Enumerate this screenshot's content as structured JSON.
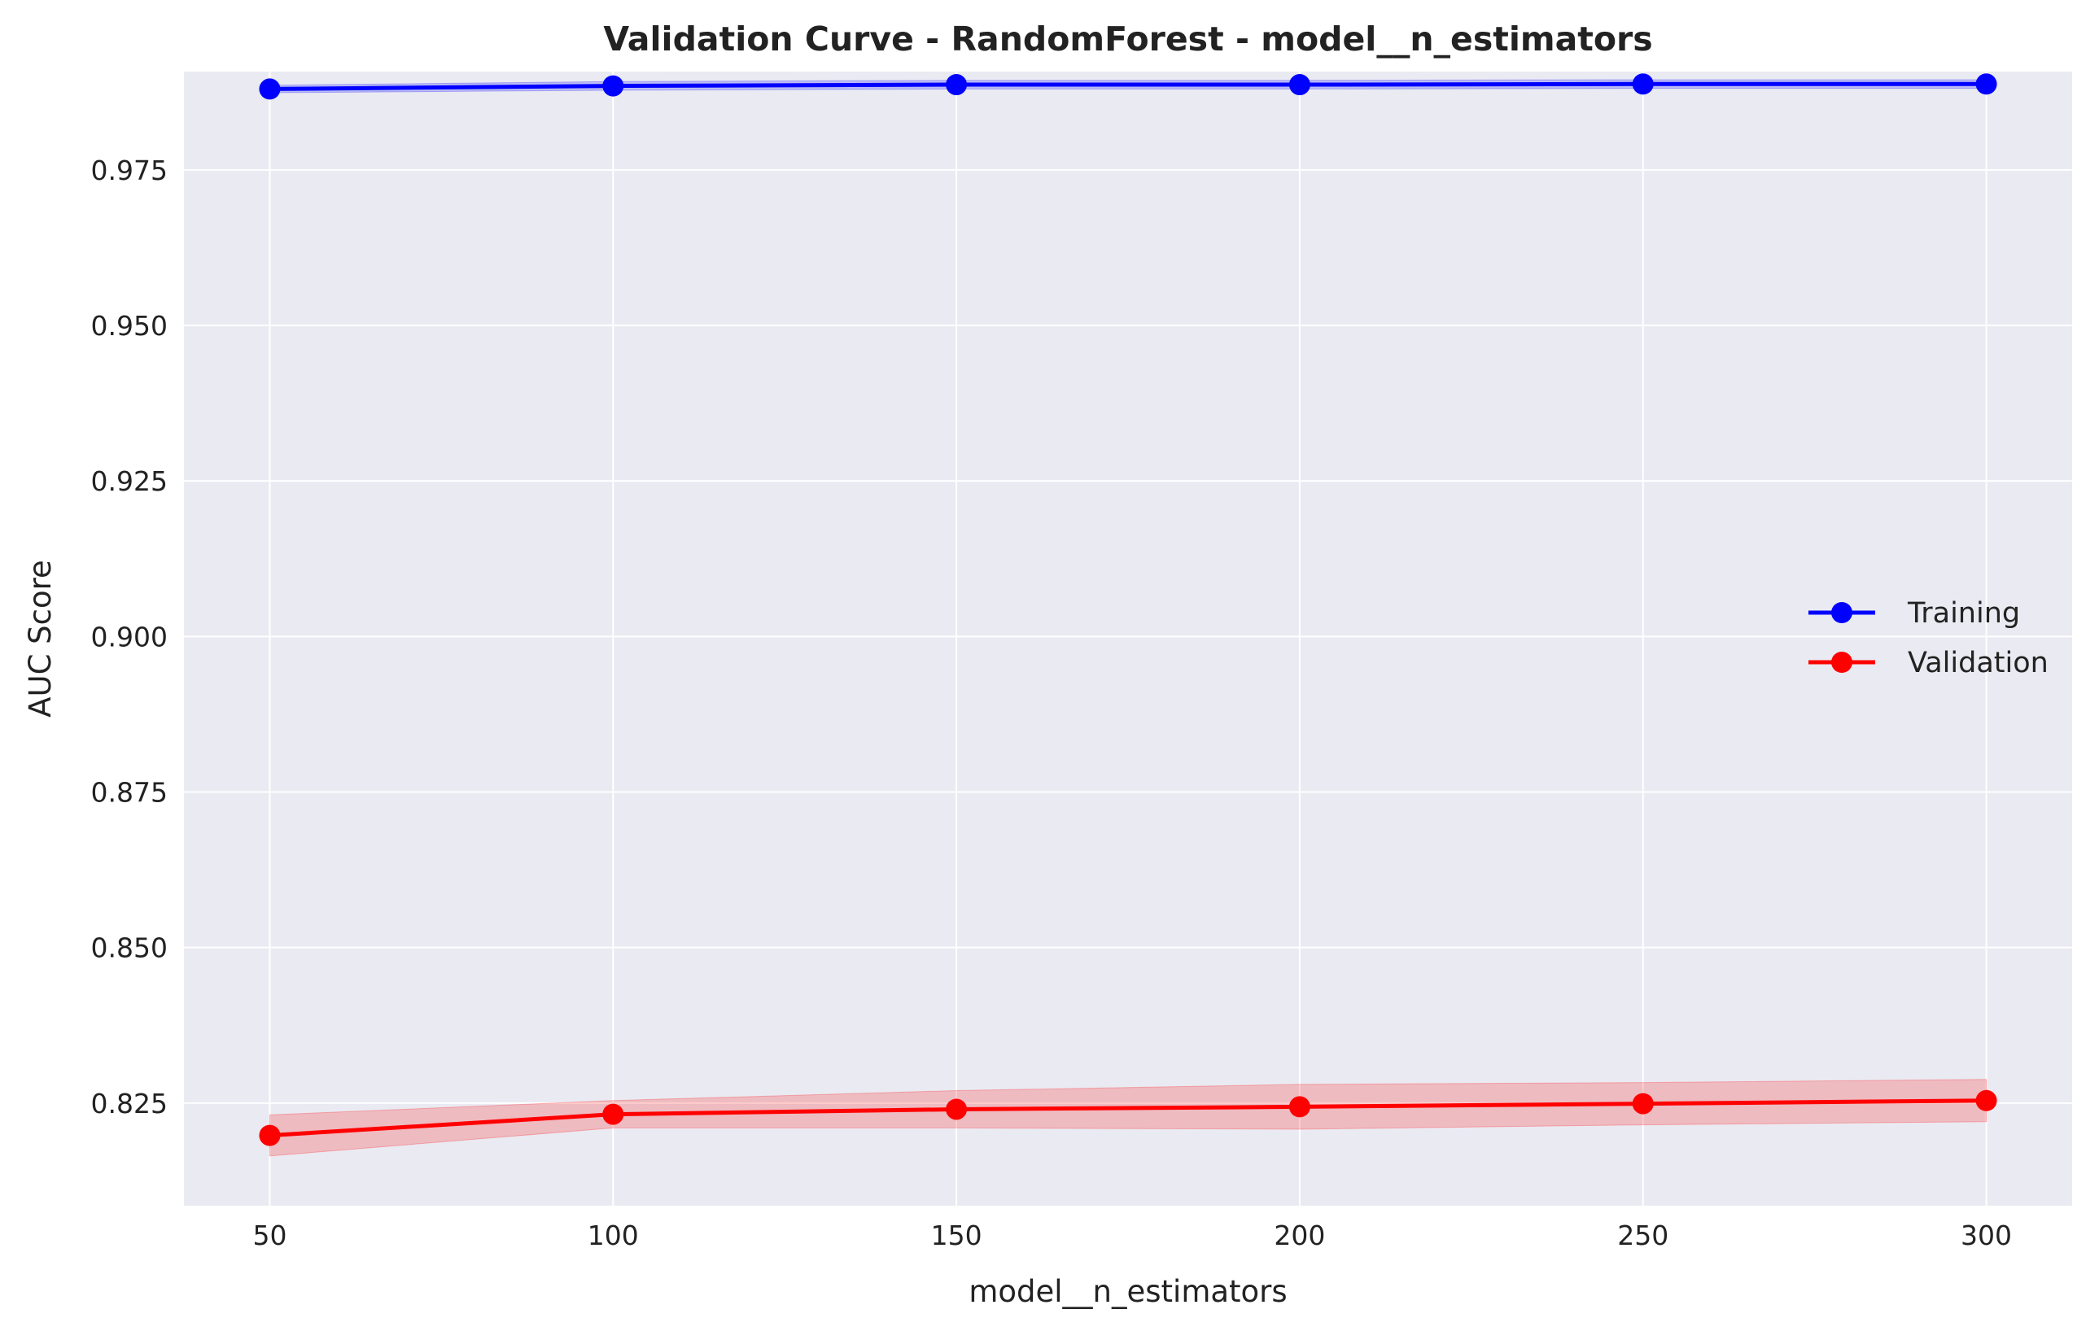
{
  "chart_data": {
    "type": "line",
    "title": "Validation Curve - RandomForest - model__n_estimators",
    "xlabel": "model__n_estimators",
    "ylabel": "AUC Score",
    "x": [
      50,
      100,
      150,
      200,
      250,
      300
    ],
    "xlim": [
      37.5,
      312.5
    ],
    "ylim": [
      0.8085,
      0.9908
    ],
    "xticks": [
      50,
      100,
      150,
      200,
      250,
      300
    ],
    "yticks": [
      0.825,
      0.85,
      0.875,
      0.9,
      0.925,
      0.95,
      0.975
    ],
    "ytick_labels": [
      "0.825",
      "0.850",
      "0.875",
      "0.900",
      "0.925",
      "0.950",
      "0.975"
    ],
    "grid": true,
    "legend_position": "center-right",
    "series": [
      {
        "name": "Training",
        "color": "#0000ff",
        "values": [
          0.988,
          0.9885,
          0.9887,
          0.9887,
          0.9888,
          0.9888
        ],
        "band_lower": [
          0.9874,
          0.9878,
          0.988,
          0.988,
          0.9881,
          0.9881
        ],
        "band_upper": [
          0.9886,
          0.9892,
          0.9894,
          0.9894,
          0.9895,
          0.9895
        ]
      },
      {
        "name": "Validation",
        "color": "#ff0000",
        "values": [
          0.8198,
          0.8232,
          0.824,
          0.8244,
          0.8249,
          0.8254
        ],
        "band_lower": [
          0.8165,
          0.821,
          0.821,
          0.8208,
          0.8215,
          0.822
        ],
        "band_upper": [
          0.8231,
          0.8254,
          0.827,
          0.828,
          0.8283,
          0.8288
        ]
      }
    ]
  }
}
